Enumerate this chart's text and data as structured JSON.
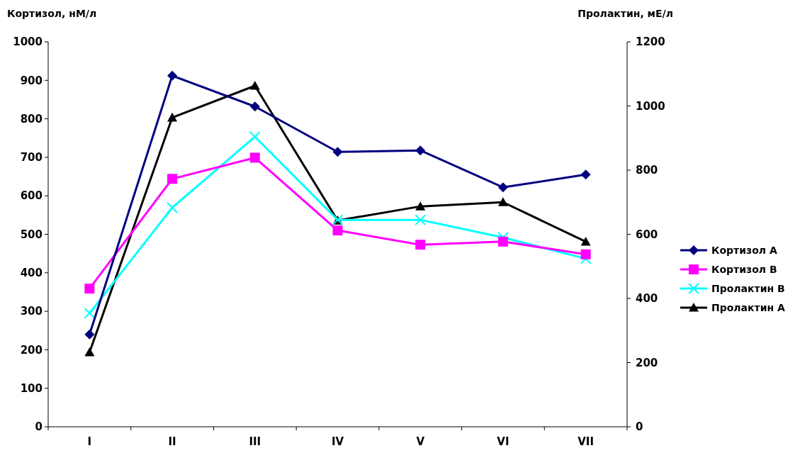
{
  "chart_data": {
    "type": "line",
    "ylabel": "Кортизол, нМ/л",
    "y2label": "Пролактин, мЕ/л",
    "categories": [
      "I",
      "II",
      "III",
      "IV",
      "V",
      "VI",
      "VII"
    ],
    "ylim": [
      0,
      1000
    ],
    "yticks": [
      0,
      100,
      200,
      300,
      400,
      500,
      600,
      700,
      800,
      900,
      1000
    ],
    "y2lim": [
      0,
      1200
    ],
    "y2ticks": [
      0,
      200,
      400,
      600,
      800,
      1000,
      1200
    ],
    "legend": "right",
    "grid": false,
    "series": [
      {
        "name": "Кортизол А",
        "color": "#000080",
        "marker": "diamond",
        "values": [
          240,
          912,
          832,
          714,
          718,
          622,
          655
        ]
      },
      {
        "name": "Кортизол В",
        "color": "#ff00ff",
        "marker": "square",
        "values": [
          359,
          644,
          699,
          510,
          473,
          481,
          448
        ]
      },
      {
        "name": "Пролактин В",
        "color": "#00ffff",
        "marker": "cross",
        "axis": "y2",
        "values": [
          354,
          683,
          904,
          645,
          645,
          590,
          524
        ]
      },
      {
        "name": "Пролактин А",
        "color": "#000000",
        "marker": "triangle",
        "axis": "y2",
        "values": [
          232,
          964,
          1063,
          643,
          687,
          700,
          577
        ]
      }
    ]
  }
}
